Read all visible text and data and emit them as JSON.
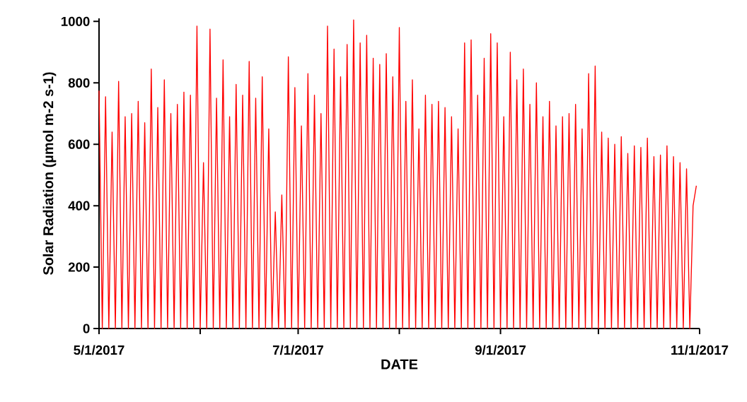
{
  "chart_data": {
    "type": "line",
    "xlabel": "DATE",
    "ylabel": "Solar Radiation (µmol m-2 s-1)",
    "line_style": "solid",
    "grid": false,
    "xlim": [
      "2017-05-01",
      "2017-11-01"
    ],
    "ylim": [
      0,
      1010
    ],
    "xticks": [
      {
        "value": "2017-05-01",
        "label": "5/1/2017"
      },
      {
        "value": "2017-06-01",
        "label": null
      },
      {
        "value": "2017-07-01",
        "label": "7/1/2017"
      },
      {
        "value": "2017-08-01",
        "label": null
      },
      {
        "value": "2017-09-01",
        "label": "9/1/2017"
      },
      {
        "value": "2017-10-01",
        "label": null
      },
      {
        "value": "2017-11-01",
        "label": "11/1/2017"
      }
    ],
    "yticks": [
      0,
      200,
      400,
      600,
      800,
      1000
    ],
    "x": [
      "2017-05-01",
      "2017-05-02",
      "2017-05-03",
      "2017-05-04",
      "2017-05-05",
      "2017-05-06",
      "2017-05-07",
      "2017-05-08",
      "2017-05-09",
      "2017-05-10",
      "2017-05-11",
      "2017-05-12",
      "2017-05-13",
      "2017-05-14",
      "2017-05-15",
      "2017-05-16",
      "2017-05-17",
      "2017-05-18",
      "2017-05-19",
      "2017-05-20",
      "2017-05-21",
      "2017-05-22",
      "2017-05-23",
      "2017-05-24",
      "2017-05-25",
      "2017-05-26",
      "2017-05-27",
      "2017-05-28",
      "2017-05-29",
      "2017-05-30",
      "2017-05-31",
      "2017-06-01",
      "2017-06-02",
      "2017-06-03",
      "2017-06-04",
      "2017-06-05",
      "2017-06-06",
      "2017-06-07",
      "2017-06-08",
      "2017-06-09",
      "2017-06-10",
      "2017-06-11",
      "2017-06-12",
      "2017-06-13",
      "2017-06-14",
      "2017-06-15",
      "2017-06-16",
      "2017-06-17",
      "2017-06-18",
      "2017-06-19",
      "2017-06-20",
      "2017-06-21",
      "2017-06-22",
      "2017-06-23",
      "2017-06-24",
      "2017-06-25",
      "2017-06-26",
      "2017-06-27",
      "2017-06-28",
      "2017-06-29",
      "2017-06-30",
      "2017-07-01",
      "2017-07-02",
      "2017-07-03",
      "2017-07-04",
      "2017-07-05",
      "2017-07-06",
      "2017-07-07",
      "2017-07-08",
      "2017-07-09",
      "2017-07-10",
      "2017-07-11",
      "2017-07-12",
      "2017-07-13",
      "2017-07-14",
      "2017-07-15",
      "2017-07-16",
      "2017-07-17",
      "2017-07-18",
      "2017-07-19",
      "2017-07-20",
      "2017-07-21",
      "2017-07-22",
      "2017-07-23",
      "2017-07-24",
      "2017-07-25",
      "2017-07-26",
      "2017-07-27",
      "2017-07-28",
      "2017-07-29",
      "2017-07-30",
      "2017-07-31",
      "2017-08-01",
      "2017-08-02",
      "2017-08-03",
      "2017-08-04",
      "2017-08-05",
      "2017-08-06",
      "2017-08-07",
      "2017-08-08",
      "2017-08-09",
      "2017-08-10",
      "2017-08-11",
      "2017-08-12",
      "2017-08-13",
      "2017-08-14",
      "2017-08-15",
      "2017-08-16",
      "2017-08-17",
      "2017-08-18",
      "2017-08-19",
      "2017-08-20",
      "2017-08-21",
      "2017-08-22",
      "2017-08-23",
      "2017-08-24",
      "2017-08-25",
      "2017-08-26",
      "2017-08-27",
      "2017-08-28",
      "2017-08-29",
      "2017-08-30",
      "2017-08-31",
      "2017-09-01",
      "2017-09-02",
      "2017-09-03",
      "2017-09-04",
      "2017-09-05",
      "2017-09-06",
      "2017-09-07",
      "2017-09-08",
      "2017-09-09",
      "2017-09-10",
      "2017-09-11",
      "2017-09-12",
      "2017-09-13",
      "2017-09-14",
      "2017-09-15",
      "2017-09-16",
      "2017-09-17",
      "2017-09-18",
      "2017-09-19",
      "2017-09-20",
      "2017-09-21",
      "2017-09-22",
      "2017-09-23",
      "2017-09-24",
      "2017-09-25",
      "2017-09-26",
      "2017-09-27",
      "2017-09-28",
      "2017-09-29",
      "2017-09-30",
      "2017-10-01",
      "2017-10-02",
      "2017-10-03",
      "2017-10-04",
      "2017-10-05",
      "2017-10-06",
      "2017-10-07",
      "2017-10-08",
      "2017-10-09",
      "2017-10-10",
      "2017-10-11",
      "2017-10-12",
      "2017-10-13",
      "2017-10-14",
      "2017-10-15",
      "2017-10-16",
      "2017-10-17",
      "2017-10-18",
      "2017-10-19",
      "2017-10-20",
      "2017-10-21",
      "2017-10-22",
      "2017-10-23",
      "2017-10-24",
      "2017-10-25",
      "2017-10-26",
      "2017-10-27",
      "2017-10-28",
      "2017-10-29",
      "2017-10-30",
      "2017-10-31"
    ],
    "series": [
      {
        "color": "#ff0000",
        "values": [
          775,
          0,
          755,
          0,
          640,
          0,
          805,
          0,
          690,
          0,
          700,
          0,
          740,
          0,
          670,
          0,
          845,
          0,
          720,
          0,
          810,
          0,
          700,
          0,
          730,
          0,
          770,
          0,
          760,
          0,
          985,
          0,
          540,
          0,
          975,
          0,
          750,
          0,
          875,
          0,
          690,
          0,
          795,
          0,
          760,
          0,
          870,
          0,
          750,
          0,
          820,
          0,
          650,
          0,
          380,
          0,
          435,
          0,
          885,
          0,
          785,
          0,
          660,
          0,
          830,
          0,
          760,
          0,
          700,
          0,
          985,
          0,
          910,
          0,
          820,
          0,
          925,
          0,
          1005,
          0,
          930,
          0,
          955,
          0,
          880,
          0,
          860,
          0,
          895,
          0,
          820,
          0,
          980,
          0,
          740,
          0,
          810,
          0,
          650,
          0,
          760,
          0,
          730,
          0,
          740,
          0,
          720,
          0,
          690,
          0,
          650,
          0,
          930,
          0,
          940,
          0,
          760,
          0,
          880,
          0,
          960,
          0,
          930,
          0,
          690,
          0,
          900,
          0,
          810,
          0,
          845,
          0,
          730,
          0,
          800,
          0,
          690,
          0,
          740,
          0,
          660,
          0,
          690,
          0,
          700,
          0,
          730,
          0,
          650,
          0,
          830,
          0,
          855,
          0,
          640,
          0,
          620,
          0,
          600,
          0,
          625,
          0,
          570,
          0,
          595,
          0,
          590,
          0,
          620,
          0,
          560,
          0,
          565,
          0,
          595,
          0,
          560,
          0,
          540,
          0,
          520,
          0,
          400,
          465
        ]
      }
    ]
  }
}
